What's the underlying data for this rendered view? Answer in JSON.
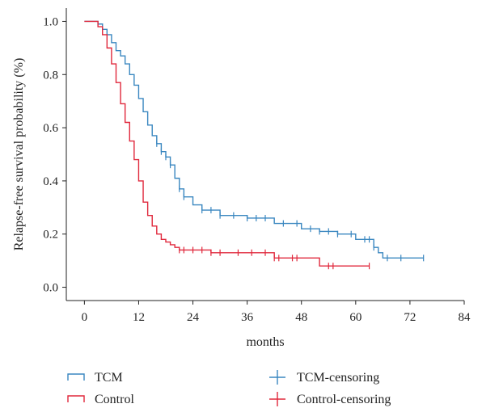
{
  "chart_data": {
    "type": "line",
    "step": true,
    "xlabel": "months",
    "ylabel": "Relapse-free survival probability (%)",
    "xlim": [
      -4,
      84
    ],
    "ylim": [
      -0.05,
      1.05
    ],
    "xticks": [
      0,
      12,
      24,
      36,
      48,
      60,
      72,
      84
    ],
    "yticks": [
      0.0,
      0.2,
      0.4,
      0.6,
      0.8,
      1.0
    ],
    "ytick_labels": [
      "0.0",
      "0.2",
      "0.4",
      "0.6",
      "0.8",
      "1.0"
    ],
    "grid": false,
    "legend_position": "bottom",
    "legend": [
      "TCM",
      "Control",
      "TCM-censoring",
      "Control-censoring"
    ],
    "colors": {
      "TCM": "#3a87c0",
      "Control": "#e0283c"
    },
    "series": [
      {
        "name": "TCM",
        "x": [
          0,
          3,
          4,
          5,
          6,
          7,
          8,
          9,
          10,
          11,
          12,
          13,
          14,
          15,
          16,
          17,
          18,
          19,
          20,
          21,
          22,
          24,
          26,
          30,
          36,
          42,
          48,
          52,
          56,
          60,
          64,
          65,
          66,
          75
        ],
        "y": [
          1.0,
          0.99,
          0.97,
          0.95,
          0.92,
          0.89,
          0.87,
          0.84,
          0.8,
          0.76,
          0.71,
          0.66,
          0.61,
          0.57,
          0.54,
          0.51,
          0.49,
          0.46,
          0.41,
          0.37,
          0.34,
          0.31,
          0.29,
          0.27,
          0.26,
          0.24,
          0.22,
          0.21,
          0.2,
          0.18,
          0.15,
          0.13,
          0.11,
          0.11
        ],
        "censoring": [
          16,
          17,
          18,
          19,
          21,
          22,
          26,
          28,
          30,
          33,
          36,
          38,
          40,
          44,
          47,
          50,
          52,
          54,
          56,
          59,
          62,
          63,
          64,
          67,
          70,
          75
        ]
      },
      {
        "name": "Control",
        "x": [
          0,
          3,
          4,
          5,
          6,
          7,
          8,
          9,
          10,
          11,
          12,
          13,
          14,
          15,
          16,
          17,
          18,
          19,
          20,
          21,
          24,
          28,
          36,
          42,
          48,
          52,
          56,
          63
        ],
        "y": [
          1.0,
          0.98,
          0.95,
          0.9,
          0.84,
          0.77,
          0.69,
          0.62,
          0.55,
          0.48,
          0.4,
          0.32,
          0.27,
          0.23,
          0.2,
          0.18,
          0.17,
          0.16,
          0.15,
          0.14,
          0.14,
          0.13,
          0.13,
          0.11,
          0.11,
          0.08,
          0.08,
          0.08
        ],
        "censoring": [
          21,
          22,
          24,
          26,
          28,
          30,
          34,
          37,
          40,
          42,
          43,
          46,
          47,
          54,
          55,
          63
        ]
      }
    ]
  }
}
